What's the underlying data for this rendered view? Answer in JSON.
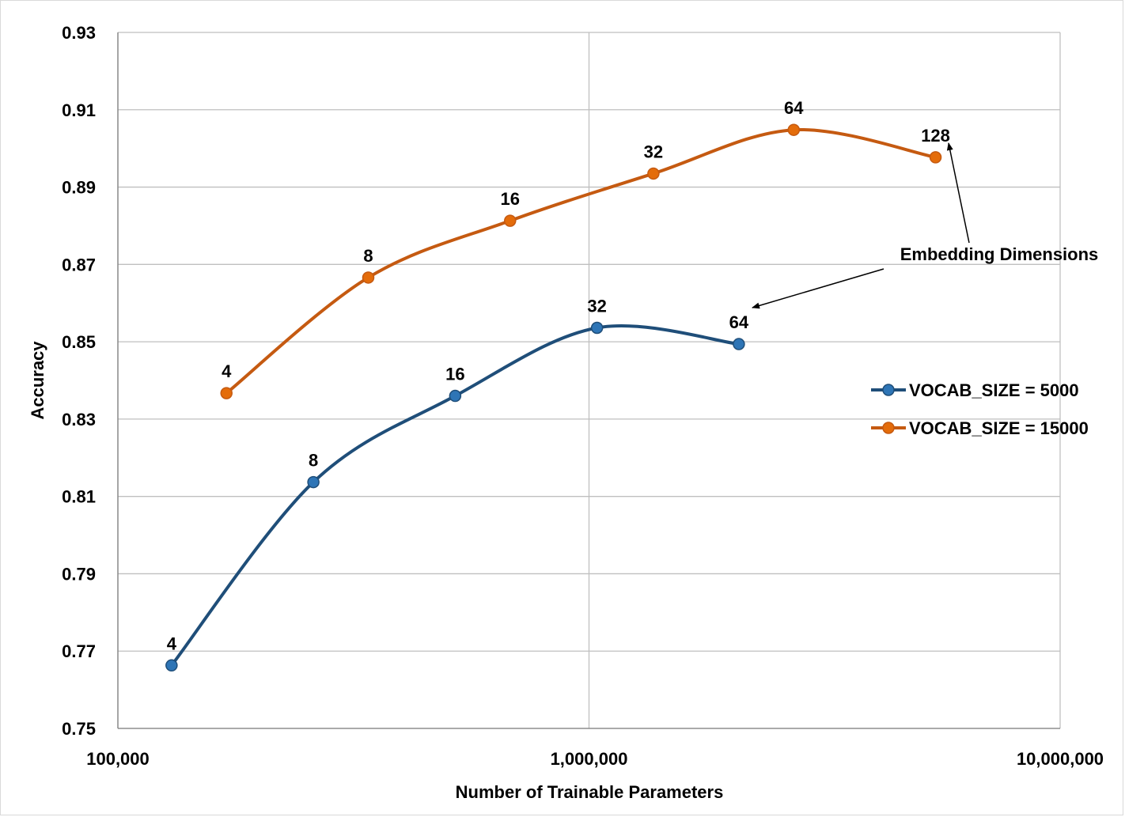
{
  "chart_data": {
    "type": "line",
    "xlabel": "Number of Trainable Parameters",
    "ylabel": "Accuracy",
    "x_scale": "log",
    "xlim": [
      100000,
      10000000
    ],
    "ylim": [
      0.75,
      0.93
    ],
    "x_ticks": [
      "100,000",
      "1,000,000",
      "10,000,000"
    ],
    "y_ticks": [
      "0.75",
      "0.77",
      "0.79",
      "0.81",
      "0.83",
      "0.85",
      "0.87",
      "0.89",
      "0.91",
      "0.93"
    ],
    "grid": true,
    "legend_position": "right",
    "series": [
      {
        "name": "VOCAB_SIZE = 5000",
        "color": "#2e75b6",
        "line_color": "#1f4e79",
        "points": [
          {
            "x": 130000,
            "y": 0.7663,
            "label": "4"
          },
          {
            "x": 260000,
            "y": 0.8137,
            "label": "8"
          },
          {
            "x": 520000,
            "y": 0.836,
            "label": "16"
          },
          {
            "x": 1040000,
            "y": 0.8536,
            "label": "32"
          },
          {
            "x": 2080000,
            "y": 0.8494,
            "label": "64"
          }
        ]
      },
      {
        "name": "VOCAB_SIZE = 15000",
        "color": "#e46c0a",
        "line_color": "#c55a11",
        "points": [
          {
            "x": 170000,
            "y": 0.8367,
            "label": "4"
          },
          {
            "x": 340000,
            "y": 0.8666,
            "label": "8"
          },
          {
            "x": 680000,
            "y": 0.8813,
            "label": "16"
          },
          {
            "x": 1370000,
            "y": 0.8935,
            "label": "32"
          },
          {
            "x": 2720000,
            "y": 0.9048,
            "label": "64"
          },
          {
            "x": 5440000,
            "y": 0.8977,
            "label": "128"
          }
        ]
      }
    ],
    "annotation": "Embedding Dimensions"
  }
}
